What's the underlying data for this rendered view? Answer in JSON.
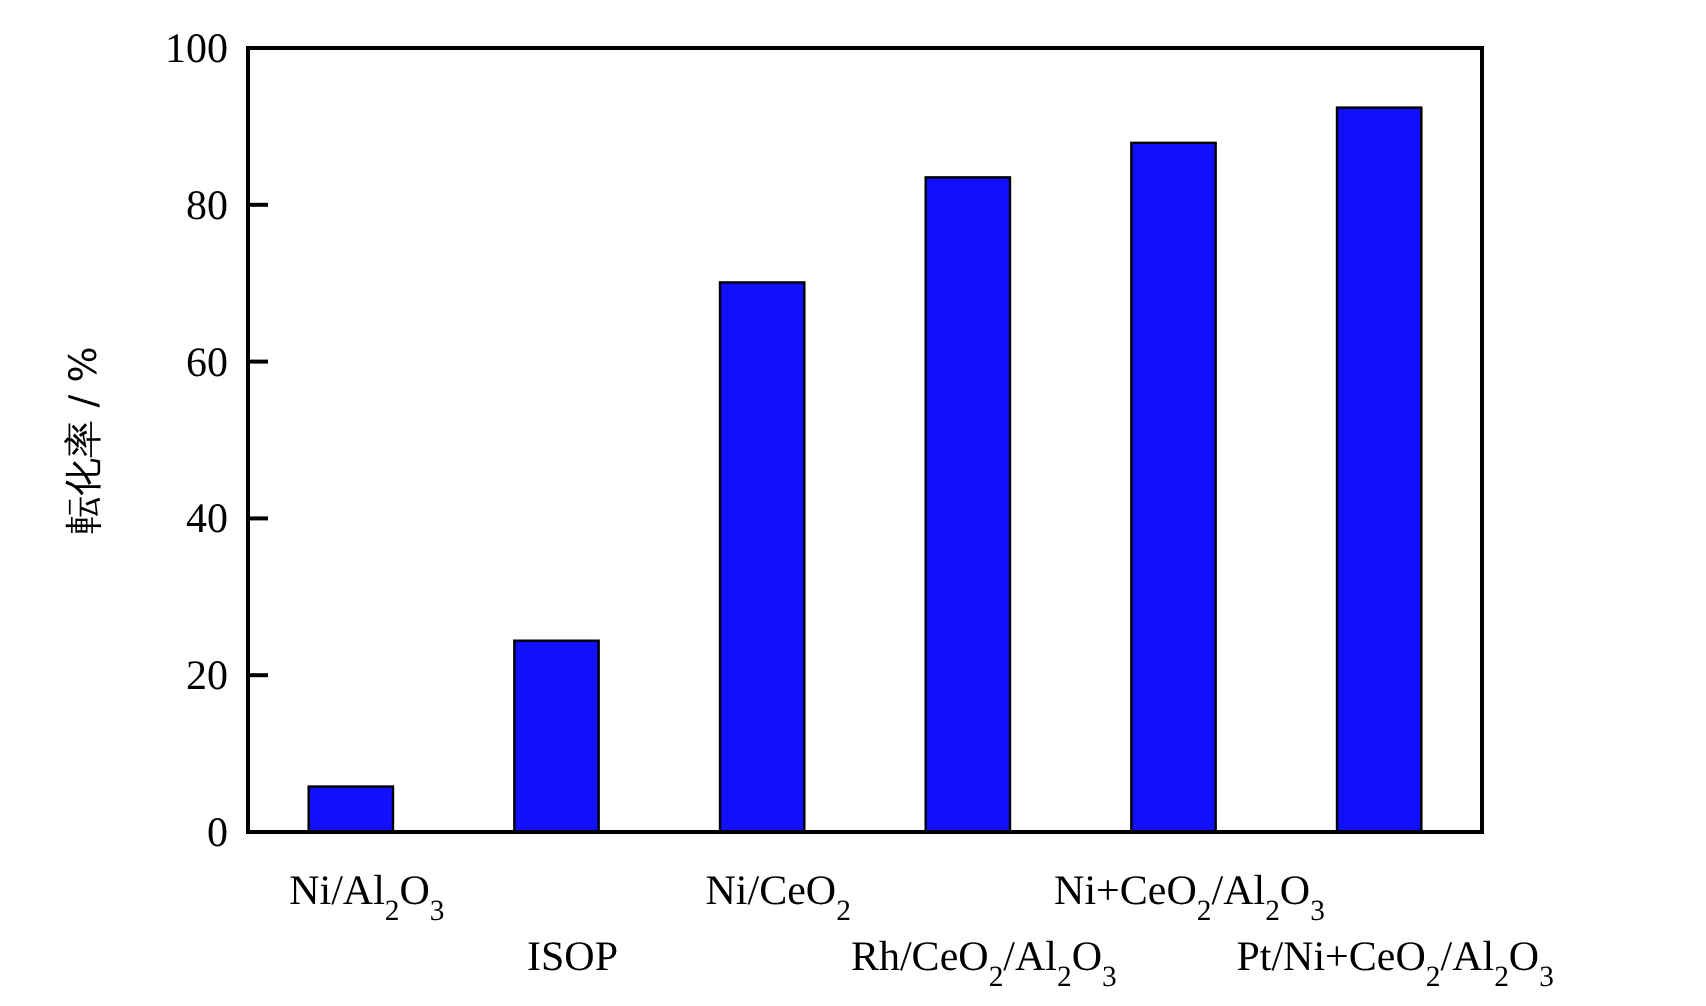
{
  "chart_data": {
    "type": "bar",
    "ylabel": "転化率 / %",
    "categories": [
      "Ni/Al$_{2}$O$_{3}$",
      "ISOP",
      "Ni/CeO$_{2}$",
      "Rh/CeO$_{2}$/Al$_{2}$O$_{3}$",
      "Ni+CeO$_{2}$/Al$_{2}$O$_{3}$",
      "Pt/Ni+CeO$_{2}$/Al$_{2}$O$_{3}$"
    ],
    "values": [
      5.8,
      24.4,
      70.1,
      83.5,
      87.9,
      92.4
    ],
    "color": "#1010ff",
    "ylim": [
      0,
      100
    ],
    "yticks": [
      0,
      20,
      40,
      60,
      80,
      100
    ],
    "grid": false
  }
}
